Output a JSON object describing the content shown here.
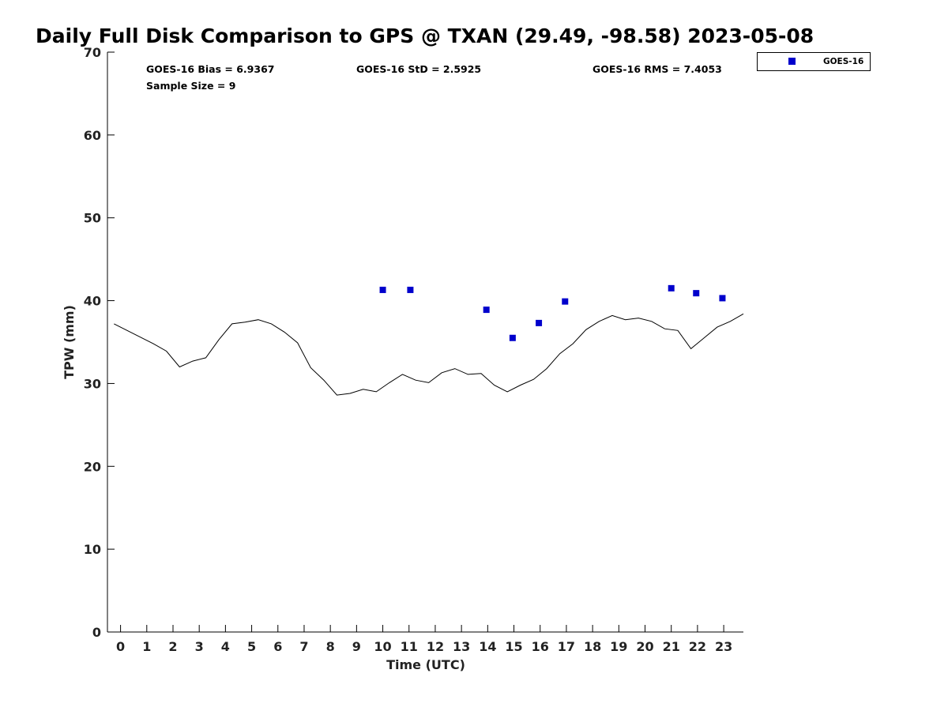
{
  "chart_data": {
    "type": "scatter",
    "title": "Daily Full Disk Comparison to GPS @ TXAN (29.49, -98.58) 2023-05-08",
    "xlabel": "Time (UTC)",
    "ylabel": "TPW (mm)",
    "xlim": [
      -0.5,
      23.75
    ],
    "ylim": [
      0,
      70
    ],
    "xticks": [
      0,
      1,
      2,
      3,
      4,
      5,
      6,
      7,
      8,
      9,
      10,
      11,
      12,
      13,
      14,
      15,
      16,
      17,
      18,
      19,
      20,
      21,
      22,
      23
    ],
    "yticks": [
      0,
      10,
      20,
      30,
      40,
      50,
      60,
      70
    ],
    "grid": false,
    "legend_position": "top-right, outside plot",
    "stats": {
      "bias": "GOES-16 Bias = 6.9367",
      "std": "GOES-16 StD = 2.5925",
      "rms": "GOES-16 RMS = 7.4053",
      "sample": "Sample Size = 9"
    },
    "series": [
      {
        "name": "GOES-16",
        "kind": "scatter",
        "marker": "square",
        "color": "#0000cc",
        "points": [
          [
            10.0,
            41.3
          ],
          [
            11.05,
            41.3
          ],
          [
            13.95,
            38.9
          ],
          [
            14.95,
            35.5
          ],
          [
            15.95,
            37.3
          ],
          [
            16.95,
            39.9
          ],
          [
            21.0,
            41.5
          ],
          [
            21.95,
            40.9
          ],
          [
            22.95,
            40.3
          ]
        ]
      },
      {
        "kind": "line",
        "color": "#000000",
        "points": [
          [
            -0.25,
            37.2
          ],
          [
            0.25,
            36.4
          ],
          [
            0.75,
            35.6
          ],
          [
            1.25,
            34.8
          ],
          [
            1.75,
            33.9
          ],
          [
            2.25,
            32.0
          ],
          [
            2.75,
            32.7
          ],
          [
            3.25,
            33.1
          ],
          [
            3.75,
            35.3
          ],
          [
            4.25,
            37.2
          ],
          [
            4.75,
            37.4
          ],
          [
            5.25,
            37.7
          ],
          [
            5.75,
            37.2
          ],
          [
            6.25,
            36.2
          ],
          [
            6.75,
            34.9
          ],
          [
            7.25,
            31.9
          ],
          [
            7.75,
            30.4
          ],
          [
            8.25,
            28.6
          ],
          [
            8.75,
            28.8
          ],
          [
            9.25,
            29.3
          ],
          [
            9.75,
            29.0
          ],
          [
            10.25,
            30.1
          ],
          [
            10.75,
            31.1
          ],
          [
            11.25,
            30.4
          ],
          [
            11.75,
            30.1
          ],
          [
            12.25,
            31.3
          ],
          [
            12.75,
            31.8
          ],
          [
            13.25,
            31.1
          ],
          [
            13.75,
            31.2
          ],
          [
            14.25,
            29.8
          ],
          [
            14.75,
            29.0
          ],
          [
            15.25,
            29.8
          ],
          [
            15.75,
            30.5
          ],
          [
            16.25,
            31.8
          ],
          [
            16.75,
            33.6
          ],
          [
            17.25,
            34.8
          ],
          [
            17.75,
            36.5
          ],
          [
            18.25,
            37.5
          ],
          [
            18.75,
            38.2
          ],
          [
            19.25,
            37.7
          ],
          [
            19.75,
            37.9
          ],
          [
            20.25,
            37.5
          ],
          [
            20.75,
            36.6
          ],
          [
            21.25,
            36.4
          ],
          [
            21.75,
            34.2
          ],
          [
            22.25,
            35.5
          ],
          [
            22.75,
            36.8
          ],
          [
            23.25,
            37.5
          ],
          [
            23.75,
            38.4
          ]
        ]
      }
    ]
  },
  "colors": {
    "marker": "#0000cc",
    "line": "#000000",
    "axis": "#000000"
  }
}
